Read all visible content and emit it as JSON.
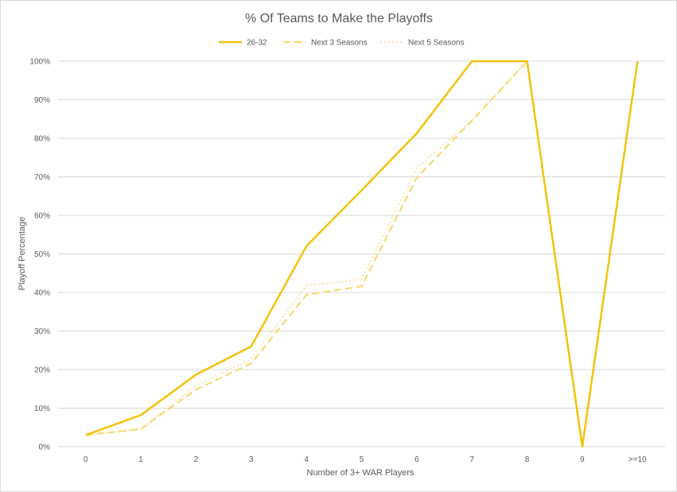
{
  "chart_data": {
    "type": "line",
    "title": "% Of Teams to Make the Playoffs",
    "xlabel": "Number of 3+ WAR Players",
    "ylabel": "Playoff Percentage",
    "categories": [
      "0",
      "1",
      "2",
      "3",
      "4",
      "5",
      "6",
      "7",
      "8",
      "9",
      ">=10"
    ],
    "ylim": [
      0,
      100
    ],
    "y_ticks": [
      "0%",
      "10%",
      "20%",
      "30%",
      "40%",
      "50%",
      "60%",
      "70%",
      "80%",
      "90%",
      "100%"
    ],
    "grid": true,
    "legend_position": "top",
    "series": [
      {
        "name": "26-32",
        "style": "solid",
        "color": "#f5c20a",
        "values": [
          3,
          8.2,
          18.7,
          26,
          52,
          66.5,
          81.3,
          100,
          100,
          0,
          100
        ]
      },
      {
        "name": "Next 3 Seasons",
        "style": "dashed",
        "color": "#f8d66a",
        "values": [
          3,
          4.6,
          14.8,
          21.6,
          39.4,
          41.6,
          69.8,
          84.6,
          100,
          0,
          100
        ]
      },
      {
        "name": "Next 5 Seasons",
        "style": "dotted",
        "color": "#fae7a6",
        "values": [
          3,
          4.6,
          15.8,
          22.8,
          41.8,
          43.4,
          72.3,
          84.6,
          100,
          0,
          100
        ]
      }
    ]
  }
}
